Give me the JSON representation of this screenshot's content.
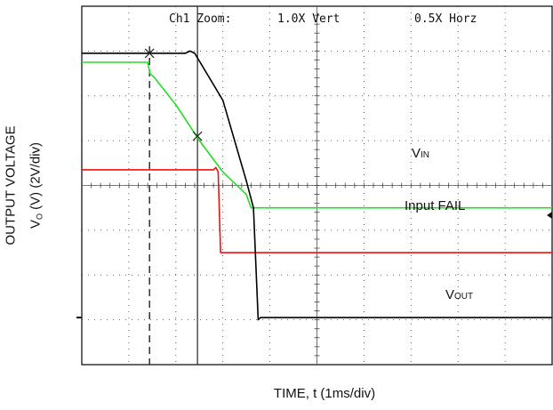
{
  "chart_data": {
    "type": "line",
    "scope_header": {
      "channel_zoom": "Ch1 Zoom:",
      "vert": "1.0X Vert",
      "horz": "0.5X Horz"
    },
    "xlabel": "TIME, t (1ms/div)",
    "ylabel_line1": "OUTPUT VOLTAGE",
    "ylabel_line2_main": "V",
    "ylabel_line2_sub": "O",
    "ylabel_line2_rest": " (V) (2V/div)",
    "divisions": {
      "x": 10,
      "y": 8
    },
    "grid": true,
    "annotations": {
      "vin_main": "V",
      "vin_sub": "IN",
      "input_fail": "Input FAIL",
      "vout_main": "V",
      "vout_sub": "OUT"
    },
    "colors": {
      "vout": "#000000",
      "vin": "#22dd22",
      "input_fail": "#ee1111",
      "grid": "#333333"
    },
    "series": [
      {
        "name": "VOUT",
        "x": [
          0,
          1.4,
          1.5,
          2.2,
          2.3,
          2.4,
          3.0,
          3.5,
          3.65,
          3.75,
          3.8,
          4.0,
          10
        ],
        "y": [
          6.95,
          6.95,
          6.95,
          6.95,
          7.0,
          6.95,
          5.9,
          4.1,
          3.5,
          1.0,
          1.05,
          1.05,
          1.05
        ]
      },
      {
        "name": "VIN",
        "x": [
          0,
          1.4,
          1.45,
          1.55,
          2.0,
          2.5,
          3.0,
          3.5,
          3.6,
          4.0,
          10
        ],
        "y": [
          6.75,
          6.75,
          6.5,
          6.4,
          5.8,
          5.0,
          4.3,
          3.8,
          3.5,
          3.5,
          3.5
        ]
      },
      {
        "name": "Input FAIL",
        "x": [
          0,
          2.8,
          2.85,
          2.9,
          2.95,
          10
        ],
        "y": [
          4.35,
          4.35,
          4.4,
          4.3,
          2.5,
          2.5
        ]
      }
    ]
  }
}
